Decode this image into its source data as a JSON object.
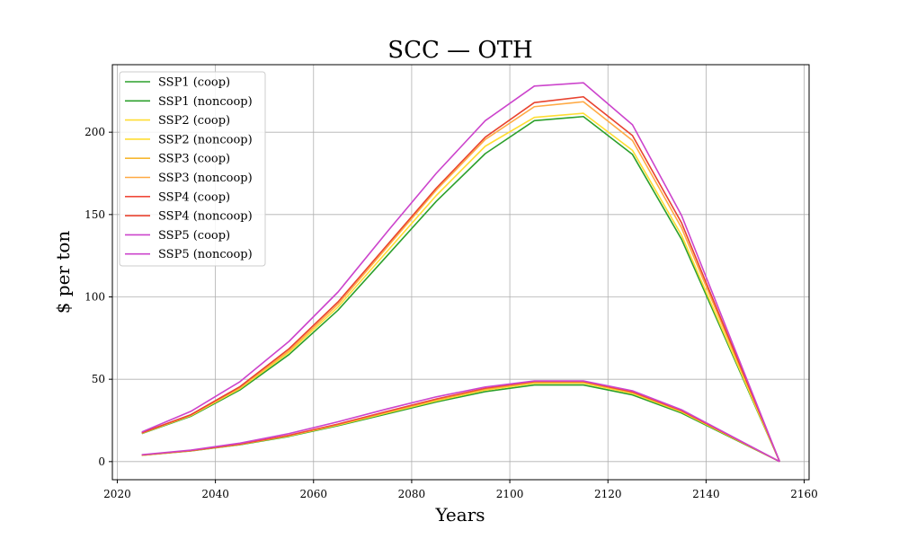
{
  "chart_data": {
    "type": "line",
    "title": "SCC — OTH",
    "xlabel": "Years",
    "ylabel": "$ per ton",
    "xlim": [
      2019,
      2161
    ],
    "ylim": [
      -11,
      241
    ],
    "xticks": [
      2020,
      2040,
      2060,
      2080,
      2100,
      2120,
      2140,
      2160
    ],
    "yticks": [
      0,
      50,
      100,
      150,
      200
    ],
    "grid": true,
    "legend_position": "top-left",
    "x": [
      2025,
      2035,
      2045,
      2055,
      2065,
      2075,
      2085,
      2095,
      2105,
      2115,
      2125,
      2135,
      2155
    ],
    "series": [
      {
        "name": "SSP1 (coop)",
        "color": "#2ca02c",
        "values": [
          3.8,
          6.5,
          10.2,
          15.3,
          21.8,
          29.0,
          36.2,
          42.5,
          46.5,
          46.5,
          40.5,
          29.5,
          0
        ]
      },
      {
        "name": "SSP1 (noncoop)",
        "color": "#2ca02c",
        "values": [
          17.0,
          27.5,
          43.5,
          65.0,
          92.0,
          125.0,
          158.0,
          187.0,
          207.0,
          209.5,
          186.5,
          135.0,
          0
        ]
      },
      {
        "name": "SSP2 (coop)",
        "color": "#ffdd33",
        "values": [
          3.9,
          6.6,
          10.4,
          15.6,
          22.2,
          29.6,
          36.9,
          43.4,
          47.5,
          47.6,
          41.4,
          30.2,
          0
        ]
      },
      {
        "name": "SSP2 (noncoop)",
        "color": "#ffdd33",
        "values": [
          17.2,
          27.9,
          44.3,
          66.3,
          93.9,
          127.7,
          161.5,
          191.5,
          209.0,
          211.5,
          189.0,
          137.5,
          0
        ]
      },
      {
        "name": "SSP3 (coop)",
        "color": "#f7b731",
        "values": [
          3.9,
          6.6,
          10.5,
          15.8,
          22.5,
          30.0,
          37.4,
          43.9,
          48.0,
          48.1,
          41.9,
          30.6,
          0
        ]
      },
      {
        "name": "SSP3 (noncoop)",
        "color": "#ffaa44",
        "values": [
          17.3,
          28.2,
          44.8,
          67.3,
          95.6,
          130.2,
          164.8,
          195.6,
          215.5,
          218.5,
          195.0,
          142.0,
          0
        ]
      },
      {
        "name": "SSP4 (coop)",
        "color": "#f04a3a",
        "values": [
          4.0,
          6.7,
          10.6,
          16.0,
          22.8,
          30.5,
          38.0,
          44.5,
          48.6,
          48.6,
          42.3,
          30.9,
          0
        ]
      },
      {
        "name": "SSP4 (noncoop)",
        "color": "#e8432f",
        "values": [
          17.5,
          28.5,
          45.5,
          68.5,
          97.0,
          131.5,
          166.0,
          197.0,
          218.0,
          221.5,
          198.0,
          145.0,
          0
        ]
      },
      {
        "name": "SSP5 (coop)",
        "color": "#cc44cc",
        "values": [
          4.2,
          7.0,
          11.2,
          17.0,
          24.2,
          32.0,
          39.3,
          45.3,
          49.0,
          49.0,
          43.0,
          31.5,
          0
        ]
      },
      {
        "name": "SSP5 (noncoop)",
        "color": "#cc44cc",
        "values": [
          18.0,
          30.5,
          48.5,
          73.0,
          103.0,
          139.5,
          175.0,
          207.0,
          228.0,
          230.0,
          204.5,
          149.5,
          0
        ]
      }
    ]
  }
}
